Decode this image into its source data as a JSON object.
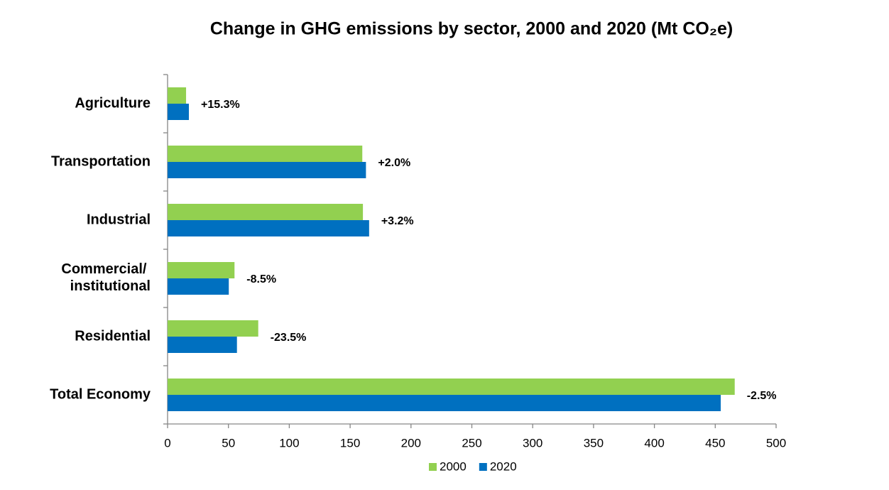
{
  "chart_data": {
    "type": "hbar",
    "title": "Change in GHG emissions by sector, 2000 and 2020 (Mt CO₂e)",
    "categories": [
      "Agriculture",
      "Transportation",
      "Industrial",
      "Commercial/ institutional",
      "Residential",
      "Total Economy"
    ],
    "series": [
      {
        "name": "2000",
        "color": "#92d050",
        "values": [
          15.2,
          160,
          160.5,
          55,
          74.5,
          466
        ]
      },
      {
        "name": "2020",
        "color": "#0070c0",
        "values": [
          17.5,
          163,
          165.6,
          50.3,
          57,
          454.5
        ]
      }
    ],
    "annotations": [
      "+15.3%",
      "+2.0%",
      "+3.2%",
      "-8.5%",
      "-23.5%",
      "-2.5%"
    ],
    "xlim": [
      0,
      500
    ],
    "xticks": [
      0,
      50,
      100,
      150,
      200,
      250,
      300,
      350,
      400,
      450,
      500
    ],
    "grid": false,
    "legend": "bottom"
  }
}
